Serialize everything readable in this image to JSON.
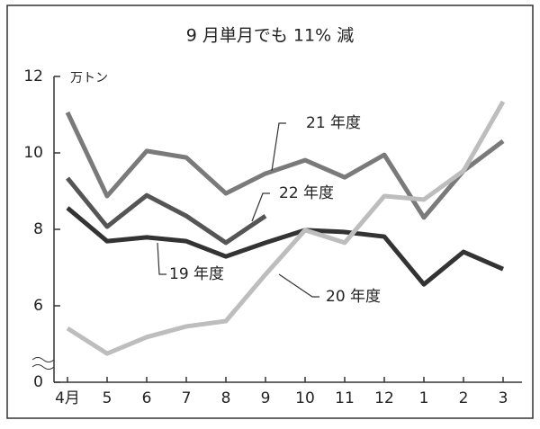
{
  "chart_data": {
    "type": "line",
    "title": "9 月単月でも 11% 減",
    "y_unit": "万トン",
    "categories": [
      "4月",
      "5",
      "6",
      "7",
      "8",
      "9",
      "10",
      "11",
      "12",
      "1",
      "2",
      "3"
    ],
    "series": [
      {
        "name": "21 年度",
        "color": "#7a7a7a",
        "values": [
          11.06,
          8.87,
          10.05,
          9.88,
          8.94,
          9.46,
          9.81,
          9.36,
          9.95,
          8.31,
          9.53,
          10.31
        ]
      },
      {
        "name": "22 年度",
        "color": "#555555",
        "values": [
          9.34,
          8.07,
          8.89,
          8.35,
          7.65,
          8.35,
          null,
          null,
          null,
          null,
          null,
          null
        ]
      },
      {
        "name": "19 年度",
        "color": "#333333",
        "values": [
          8.56,
          7.69,
          7.79,
          7.69,
          7.29,
          7.65,
          7.98,
          7.93,
          7.81,
          6.56,
          7.41,
          6.96
        ]
      },
      {
        "name": "20 年度",
        "color": "#bdbdbd",
        "values": [
          5.41,
          4.75,
          5.18,
          5.46,
          5.6,
          6.82,
          7.98,
          7.65,
          8.87,
          8.78,
          9.53,
          11.34
        ]
      }
    ],
    "ylim": [
      0,
      12
    ],
    "yticks": [
      0,
      6,
      8,
      10,
      12
    ],
    "ybreak": [
      0,
      4
    ]
  }
}
